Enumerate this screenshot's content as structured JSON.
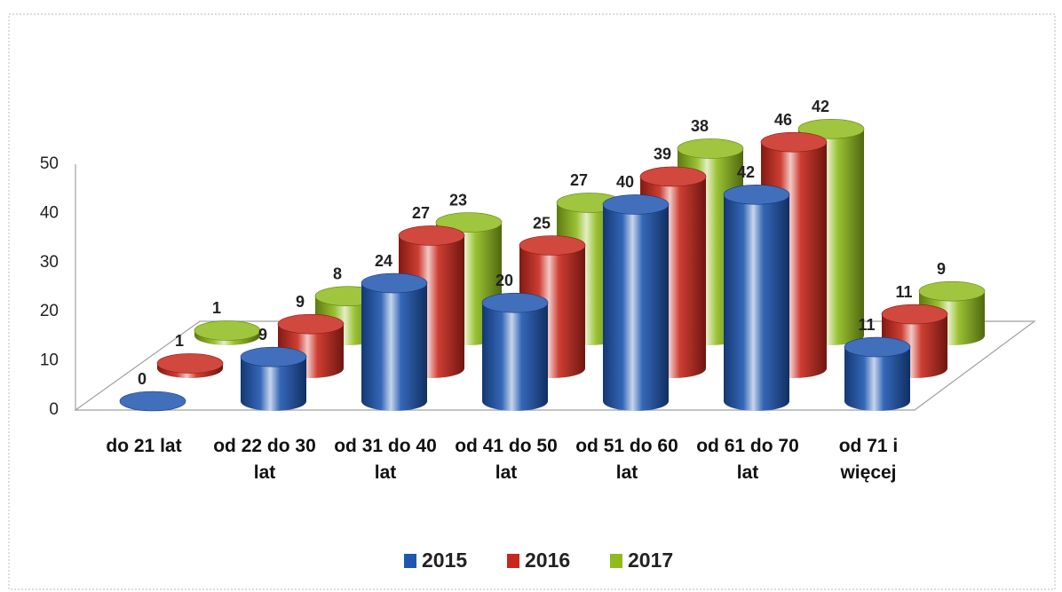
{
  "chart_data": {
    "type": "bar3d",
    "categories": [
      "do 21 lat",
      "od 22 do 30 lat",
      "od 31 do 40 lat",
      "od 41 do 50 lat",
      "od 51 do 60 lat",
      "od 61 do 70 lat",
      "od 71 i więcej"
    ],
    "series": [
      {
        "name": "2015",
        "color": "#1f56b0",
        "values": [
          0,
          9,
          24,
          20,
          40,
          42,
          11
        ]
      },
      {
        "name": "2016",
        "color": "#c8281c",
        "values": [
          1,
          9,
          27,
          25,
          39,
          46,
          11
        ]
      },
      {
        "name": "2017",
        "color": "#8fbb1c",
        "values": [
          1,
          8,
          23,
          27,
          38,
          42,
          9
        ]
      }
    ],
    "ylim": [
      0,
      50
    ],
    "yticks": [
      0,
      10,
      20,
      30,
      40,
      50
    ]
  }
}
